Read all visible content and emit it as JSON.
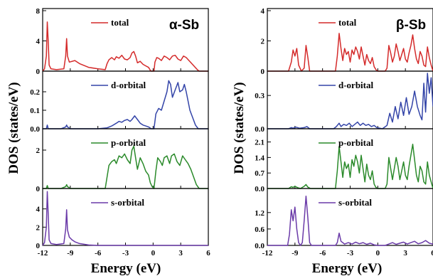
{
  "chart_data": [
    {
      "type": "line",
      "phase_label": "α-Sb",
      "xlabel": "Energy (eV)",
      "ylabel": "DOS (states/eV)",
      "xlim": [
        -12,
        6
      ],
      "xticks": [
        -12,
        -9,
        -6,
        -3,
        0,
        3,
        6
      ],
      "panels": [
        {
          "name": "total",
          "color": "#d42a2a",
          "ylim": [
            0,
            8
          ],
          "yticks": [
            0,
            4,
            8
          ],
          "x": [
            -12,
            -11.8,
            -11.6,
            -11.5,
            -11.4,
            -11.3,
            -11.1,
            -10.5,
            -9.7,
            -9.5,
            -9.4,
            -9.3,
            -9.1,
            -8.5,
            -8,
            -7,
            -6,
            -5.2,
            -5.0,
            -4.8,
            -4.5,
            -4.2,
            -4.0,
            -3.7,
            -3.4,
            -3.1,
            -2.8,
            -2.5,
            -2.3,
            -2.1,
            -1.9,
            -1.7,
            -1.4,
            -1.1,
            -0.8,
            -0.5,
            -0.4,
            -0.3,
            -0.2,
            0.1,
            0.2,
            0.4,
            0.6,
            0.9,
            1.2,
            1.5,
            1.8,
            2.1,
            2.4,
            2.7,
            3.0,
            3.3,
            3.6,
            3.9,
            4.2,
            4.5,
            4.8,
            5,
            6
          ],
          "y": [
            0,
            0.3,
            2,
            6.5,
            4,
            0.8,
            0.3,
            0.2,
            0.3,
            2,
            4.3,
            2,
            1.2,
            1.4,
            1.0,
            0.5,
            0.3,
            0.2,
            1.0,
            1.5,
            1.8,
            1.5,
            1.9,
            1.7,
            2.1,
            1.6,
            1.5,
            1.8,
            2.4,
            2.6,
            2.0,
            1.1,
            1.3,
            0.9,
            0.7,
            0.5,
            0.3,
            0.1,
            0,
            0,
            1.2,
            1.8,
            1.7,
            1.4,
            2.0,
            1.8,
            1.5,
            2.0,
            2.1,
            1.6,
            1.4,
            2.0,
            1.8,
            1.4,
            1.0,
            0.6,
            0.2,
            0,
            0
          ]
        },
        {
          "name": "d-orbital",
          "color": "#3344a8",
          "ylim": [
            0,
            0.3
          ],
          "yticks": [
            0.0,
            0.1,
            0.2
          ],
          "x": [
            -12,
            -11.6,
            -11.5,
            -11.4,
            -10,
            -9.5,
            -9.4,
            -9.3,
            -9,
            -6,
            -5,
            -4.5,
            -4.0,
            -3.7,
            -3.4,
            -3.1,
            -2.8,
            -2.5,
            -2.3,
            -2.0,
            -1.7,
            -1.4,
            -1.1,
            -0.8,
            -0.5,
            -0.2,
            0.1,
            0.3,
            0.6,
            0.9,
            1.2,
            1.5,
            1.7,
            1.9,
            2.1,
            2.4,
            2.7,
            2.9,
            3.2,
            3.4,
            3.6,
            3.8,
            4.0,
            4.3,
            4.6,
            4.9,
            6
          ],
          "y": [
            0,
            0,
            0.02,
            0,
            0,
            0.01,
            0.02,
            0.01,
            0,
            0,
            0.005,
            0.015,
            0.03,
            0.04,
            0.035,
            0.045,
            0.05,
            0.04,
            0.05,
            0.07,
            0.05,
            0.03,
            0.02,
            0.015,
            0.01,
            0,
            0,
            0.08,
            0.11,
            0.1,
            0.15,
            0.2,
            0.26,
            0.24,
            0.17,
            0.21,
            0.25,
            0.2,
            0.21,
            0.24,
            0.2,
            0.15,
            0.1,
            0.06,
            0.02,
            0,
            0
          ]
        },
        {
          "name": "p-orbital",
          "color": "#2a8a2a",
          "ylim": [
            0,
            3
          ],
          "yticks": [
            0,
            2
          ],
          "x": [
            -12,
            -11.6,
            -11.5,
            -11.4,
            -10,
            -9.5,
            -9.4,
            -9.3,
            -9,
            -6,
            -5.2,
            -5.0,
            -4.8,
            -4.5,
            -4.2,
            -4.0,
            -3.7,
            -3.4,
            -3.1,
            -2.8,
            -2.5,
            -2.3,
            -2.1,
            -1.9,
            -1.7,
            -1.4,
            -1.1,
            -0.8,
            -0.5,
            -0.3,
            -0.1,
            0.1,
            0.3,
            0.5,
            0.8,
            1.0,
            1.2,
            1.5,
            1.8,
            2.0,
            2.3,
            2.6,
            2.9,
            3.2,
            3.5,
            3.8,
            4.1,
            4.4,
            4.7,
            5,
            6
          ],
          "y": [
            0,
            0,
            0.15,
            0,
            0,
            0.1,
            0.2,
            0.1,
            0,
            0,
            0,
            0.6,
            1.2,
            1.4,
            1.5,
            1.3,
            1.7,
            1.6,
            1.8,
            1.5,
            1.3,
            2.0,
            2.2,
            1.6,
            1.0,
            1.6,
            1.3,
            0.9,
            0.7,
            0.3,
            0.1,
            0,
            0.9,
            1.6,
            1.4,
            1.2,
            1.6,
            1.7,
            1.3,
            1.7,
            1.8,
            1.4,
            1.2,
            1.7,
            1.5,
            1.3,
            1.0,
            0.6,
            0.2,
            0,
            0
          ]
        },
        {
          "name": "s-orbital",
          "color": "#6a3aa8",
          "ylim": [
            0,
            6
          ],
          "yticks": [
            0,
            2,
            4
          ],
          "x": [
            -12,
            -11.8,
            -11.6,
            -11.5,
            -11.4,
            -11.3,
            -11.1,
            -10.5,
            -9.7,
            -9.5,
            -9.4,
            -9.3,
            -9.1,
            -8.8,
            -8.5,
            -8,
            -7,
            -6,
            6
          ],
          "y": [
            0,
            0.3,
            2,
            5.9,
            3.5,
            0.6,
            0.2,
            0.1,
            0.2,
            1.8,
            3.9,
            1.7,
            0.9,
            0.6,
            0.4,
            0.2,
            0.05,
            0,
            0
          ]
        }
      ]
    },
    {
      "type": "line",
      "phase_label": "β-Sb",
      "xlabel": "Energy (eV)",
      "ylabel": "DOS (states/eV)",
      "xlim": [
        -12,
        6
      ],
      "xticks": [
        -12,
        -9,
        -6,
        -3,
        0,
        3,
        6
      ],
      "panels": [
        {
          "name": "total",
          "color": "#d42a2a",
          "ylim": [
            0,
            4
          ],
          "yticks": [
            0,
            2,
            4
          ],
          "x": [
            -12,
            -9.7,
            -9.4,
            -9.2,
            -9.0,
            -8.8,
            -8.6,
            -8.3,
            -8.0,
            -7.8,
            -7.6,
            -7.4,
            -7.2,
            -6,
            -4.6,
            -4.4,
            -4.2,
            -4.0,
            -3.8,
            -3.6,
            -3.4,
            -3.2,
            -3.0,
            -2.8,
            -2.6,
            -2.4,
            -2.2,
            -2.0,
            -1.8,
            -1.6,
            -1.4,
            -1.2,
            -1.0,
            -0.8,
            -0.6,
            -0.4,
            -0.2,
            0,
            0.8,
            1.0,
            1.2,
            1.4,
            1.6,
            1.8,
            2.0,
            2.2,
            2.4,
            2.6,
            2.8,
            3.0,
            3.2,
            3.4,
            3.6,
            3.8,
            4.0,
            4.2,
            4.4,
            4.6,
            4.8,
            5.0,
            5.2,
            5.4,
            5.6,
            5.8,
            6
          ],
          "y": [
            0,
            0,
            0.6,
            1.4,
            1.0,
            1.5,
            0.4,
            0,
            0.2,
            1.7,
            0.9,
            0,
            0,
            0,
            0,
            1.0,
            2.5,
            1.5,
            0.7,
            1.5,
            1.1,
            1.3,
            0.6,
            1.4,
            1.1,
            1.6,
            1.3,
            0.8,
            1.6,
            1.0,
            0.4,
            1.1,
            0.7,
            0.5,
            0.9,
            0.3,
            0.1,
            0,
            0,
            0.2,
            1.7,
            1.2,
            0.6,
            1.0,
            1.8,
            1.3,
            0.7,
            1.1,
            1.5,
            0.8,
            0.6,
            1.2,
            1.7,
            2.4,
            1.5,
            0.8,
            0.5,
            1.3,
            1.0,
            0.4,
            0.3,
            1.6,
            0.9,
            0.4,
            0
          ]
        },
        {
          "name": "d-orbital",
          "color": "#3344a8",
          "ylim": [
            0,
            0.5
          ],
          "yticks": [
            0.0,
            0.3
          ],
          "x": [
            -12,
            -9.7,
            -9.4,
            -9.2,
            -8.9,
            -8.5,
            -8.0,
            -7.7,
            -7.4,
            -6,
            -4.8,
            -4.5,
            -4.2,
            -4.0,
            -3.7,
            -3.4,
            -3.1,
            -2.8,
            -2.5,
            -2.2,
            -1.9,
            -1.6,
            -1.3,
            -1.0,
            -0.7,
            -0.4,
            -0.1,
            0.5,
            1.0,
            1.3,
            1.6,
            1.9,
            2.2,
            2.5,
            2.8,
            3.1,
            3.4,
            3.7,
            4.0,
            4.3,
            4.6,
            4.8,
            5.0,
            5.2,
            5.4,
            5.6,
            5.8,
            6
          ],
          "y": [
            0,
            0,
            0.01,
            0.005,
            0.015,
            0.005,
            0.01,
            0.02,
            0,
            0,
            0,
            0.02,
            0.05,
            0.02,
            0.04,
            0.03,
            0.05,
            0.02,
            0.04,
            0.06,
            0.03,
            0.05,
            0.03,
            0.04,
            0.02,
            0.03,
            0.01,
            0,
            0.03,
            0.14,
            0.06,
            0.2,
            0.09,
            0.24,
            0.12,
            0.28,
            0.13,
            0.2,
            0.34,
            0.2,
            0.12,
            0.08,
            0.41,
            0.15,
            0.5,
            0.32,
            0.46,
            0.2
          ]
        },
        {
          "name": "p-orbital",
          "color": "#2a8a2a",
          "ylim": [
            0,
            2.6
          ],
          "yticks": [
            0.0,
            0.7,
            1.4,
            2.1
          ],
          "x": [
            -12,
            -9.7,
            -9.4,
            -9.2,
            -9.0,
            -8.7,
            -8.4,
            -8.0,
            -7.8,
            -7.6,
            -7.3,
            -6,
            -4.6,
            -4.4,
            -4.2,
            -4.0,
            -3.8,
            -3.6,
            -3.4,
            -3.2,
            -3.0,
            -2.8,
            -2.6,
            -2.4,
            -2.2,
            -2.0,
            -1.8,
            -1.6,
            -1.4,
            -1.2,
            -1.0,
            -0.8,
            -0.6,
            -0.4,
            -0.2,
            0,
            0.8,
            1.0,
            1.2,
            1.4,
            1.6,
            1.8,
            2.0,
            2.2,
            2.4,
            2.6,
            2.8,
            3.0,
            3.2,
            3.4,
            3.6,
            3.8,
            4.0,
            4.2,
            4.4,
            4.6,
            4.8,
            5.0,
            5.2,
            5.4,
            5.6,
            5.8,
            6
          ],
          "y": [
            0,
            0,
            0.08,
            0.05,
            0.1,
            0.04,
            0,
            0.1,
            0.18,
            0.06,
            0,
            0,
            0,
            0.8,
            1.9,
            1.2,
            0.5,
            1.2,
            0.9,
            1.1,
            0.5,
            1.3,
            1.0,
            1.5,
            1.2,
            0.7,
            1.5,
            0.9,
            0.3,
            1.1,
            0.6,
            0.4,
            0.8,
            0.2,
            0.05,
            0,
            0,
            0.2,
            1.4,
            0.9,
            0.4,
            0.9,
            1.4,
            1.0,
            0.4,
            0.8,
            1.2,
            0.6,
            0.4,
            1.0,
            1.5,
            2.0,
            1.3,
            0.6,
            0.3,
            1.0,
            0.8,
            0.3,
            0.2,
            1.2,
            0.6,
            0.3,
            0
          ]
        },
        {
          "name": "s-orbital",
          "color": "#6a3aa8",
          "ylim": [
            0,
            2.0
          ],
          "yticks": [
            0.0,
            0.6,
            1.2
          ],
          "x": [
            -12,
            -9.8,
            -9.6,
            -9.4,
            -9.2,
            -9.0,
            -8.8,
            -8.6,
            -8.4,
            -8.2,
            -8.0,
            -7.8,
            -7.6,
            -7.4,
            -7.2,
            -6,
            -4.6,
            -4.4,
            -4.2,
            -4.0,
            -3.6,
            -3.2,
            -2.8,
            -2.4,
            -2.0,
            -1.6,
            -1.2,
            -0.8,
            -0.4,
            0,
            0.8,
            1.2,
            1.6,
            2.0,
            2.4,
            2.8,
            3.2,
            3.6,
            4.0,
            4.4,
            4.8,
            5.2,
            5.6,
            6
          ],
          "y": [
            0,
            0,
            0.4,
            1.3,
            0.9,
            1.4,
            0.6,
            0.1,
            0,
            0.1,
            0.9,
            1.8,
            1.0,
            0.1,
            0,
            0,
            0,
            0.1,
            0.45,
            0.15,
            0.05,
            0.1,
            0.05,
            0.12,
            0.06,
            0.1,
            0.04,
            0.08,
            0.02,
            0,
            0,
            0.05,
            0.1,
            0.04,
            0.08,
            0.12,
            0.05,
            0.1,
            0.15,
            0.06,
            0.1,
            0.18,
            0.08,
            0.05
          ]
        }
      ]
    }
  ]
}
